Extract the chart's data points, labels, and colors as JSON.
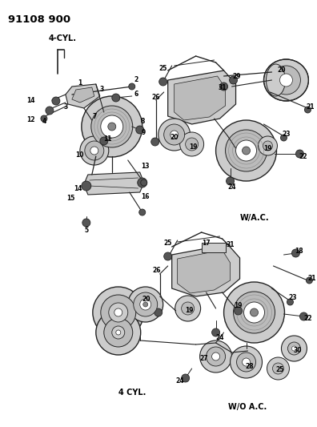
{
  "title": "91108 900",
  "background_color": "#ffffff",
  "text_color": "#000000",
  "figsize": [
    3.96,
    5.33
  ],
  "dpi": 100,
  "top_left_label": "4-CYL.",
  "top_right_label": "W/A.C.",
  "bottom_left_label": "4 CYL.",
  "bottom_right_label": "W/O A.C.",
  "gray_dark": "#555555",
  "gray_mid": "#888888",
  "gray_light": "#bbbbbb",
  "gray_fill": "#cccccc",
  "line_color": "#222222",
  "lw_main": 0.7,
  "lw_thin": 0.5,
  "lw_thick": 1.0,
  "font_size_label": 5.5,
  "font_size_section": 7.0,
  "font_size_title": 9.5
}
